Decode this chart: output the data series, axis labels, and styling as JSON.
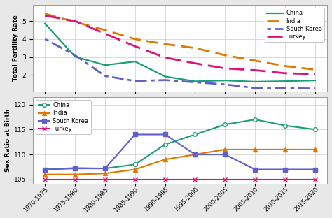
{
  "periods": [
    "1970-1975",
    "1975-1980",
    "1980-1985",
    "1985-1990",
    "1990-1995",
    "1995-2000",
    "2000-2005",
    "2005-2010",
    "2010-2015",
    "2015-2020"
  ],
  "tfr": {
    "China": [
      4.86,
      3.02,
      2.55,
      2.75,
      1.92,
      1.65,
      1.7,
      1.63,
      1.66,
      1.7
    ],
    "India": [
      5.4,
      4.95,
      4.5,
      4.0,
      3.72,
      3.5,
      3.1,
      2.8,
      2.5,
      2.3
    ],
    "South Korea": [
      4.0,
      3.1,
      1.95,
      1.67,
      1.72,
      1.6,
      1.48,
      1.28,
      1.28,
      1.25
    ],
    "Turkey": [
      5.3,
      5.0,
      4.3,
      3.6,
      2.97,
      2.65,
      2.37,
      2.27,
      2.1,
      2.05
    ]
  },
  "srb": {
    "China": [
      107.0,
      107.3,
      107.2,
      108.0,
      112.0,
      114.0,
      116.0,
      117.0,
      115.8,
      115.0
    ],
    "India": [
      106.0,
      106.0,
      106.2,
      107.0,
      109.0,
      110.0,
      111.0,
      111.0,
      111.0,
      111.0
    ],
    "South Korea": [
      107.0,
      107.2,
      107.2,
      114.0,
      114.0,
      110.0,
      110.0,
      107.0,
      107.0,
      107.0
    ],
    "Turkey": [
      105.0,
      105.0,
      105.0,
      105.0,
      105.0,
      105.0,
      105.0,
      105.0,
      105.0,
      105.0
    ]
  },
  "tfr_styles": {
    "China": {
      "color": "#1a9e7a",
      "linestyle": "-",
      "lw": 1.6,
      "dash": null
    },
    "India": {
      "color": "#e07800",
      "linestyle": "--",
      "lw": 2.0,
      "dash": [
        6,
        3
      ]
    },
    "South Korea": {
      "color": "#6060cc",
      "linestyle": "dotted",
      "lw": 2.0,
      "dash": [
        2,
        2,
        6,
        2
      ]
    },
    "Turkey": {
      "color": "#dd1177",
      "linestyle": "--",
      "lw": 2.0,
      "dash": [
        8,
        3
      ]
    }
  },
  "srb_styles": {
    "China": {
      "color": "#1a9e7a",
      "marker": "o",
      "markerfacecolor": "white",
      "lw": 1.5,
      "ms": 4
    },
    "India": {
      "color": "#e07800",
      "marker": "^",
      "markerfacecolor": "#e07800",
      "lw": 1.5,
      "ms": 4
    },
    "South Korea": {
      "color": "#6060cc",
      "marker": "s",
      "markerfacecolor": "#6060cc",
      "lw": 1.5,
      "ms": 4
    },
    "Turkey": {
      "color": "#dd1177",
      "marker": "x",
      "markerfacecolor": "#dd1177",
      "lw": 1.5,
      "ms": 4
    }
  },
  "tfr_ylim": [
    1.1,
    5.9
  ],
  "tfr_yticks": [
    2,
    3,
    4,
    5
  ],
  "srb_ylim": [
    104.2,
    121.5
  ],
  "srb_yticks": [
    105,
    110,
    115,
    120
  ],
  "ylabel_top": "Total Fertility Rate",
  "ylabel_bottom": "Sex Ratio at Birth",
  "bg_color": "#e8e8e8",
  "plot_bg": "#ffffff",
  "grid_color": "#cccccc",
  "fontsize": 6.5
}
